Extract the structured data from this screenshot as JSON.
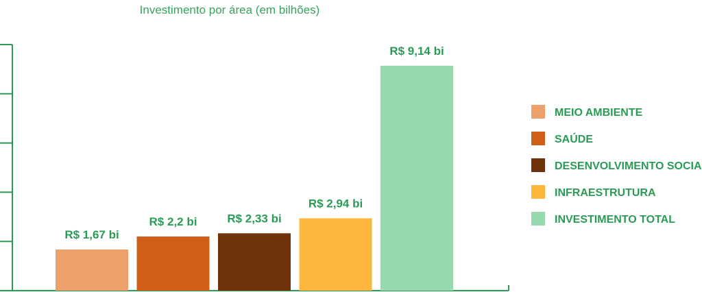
{
  "chart_data": {
    "type": "bar",
    "title": "Investimento por área (em bilhões)",
    "categories": [
      "MEIO AMBIENTE",
      "SAÚDE",
      "DESENVOLVIMENTO SOCIAL",
      "INFRAESTRUTURA",
      "INVESTIMENTO TOTAL"
    ],
    "values": [
      1.67,
      2.2,
      2.33,
      2.94,
      9.14
    ],
    "data_labels": [
      "R$ 1,67 bi",
      "R$ 2,2 bi",
      "R$ 2,33 bi",
      "R$ 2,94 bi",
      "R$ 9,14 bi"
    ],
    "colors": [
      "#eda06c",
      "#cf5e18",
      "#6d310b",
      "#fdb73c",
      "#98d9ad"
    ],
    "axis_color": "#2a9a55",
    "ylim": [
      0,
      10
    ],
    "grid": false,
    "legend_position": "right"
  }
}
